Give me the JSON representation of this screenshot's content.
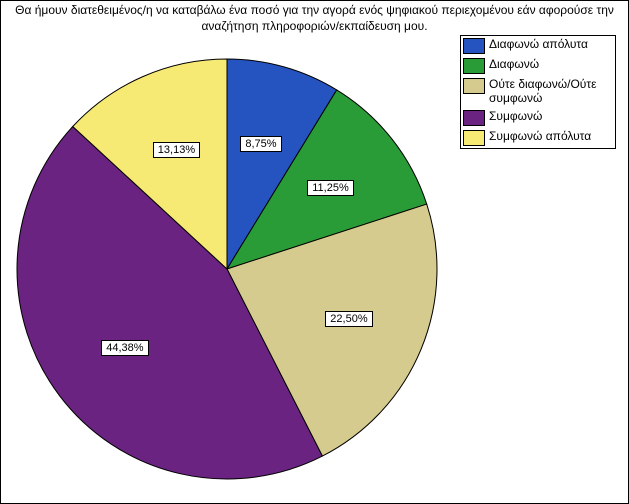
{
  "chart": {
    "type": "pie",
    "title": "Θα ήμουν διατεθειμένος/η να καταβάλω ένα ποσό για την αγορά ενός ψηφιακού περιεχομένου εάν αφορούσε την αναζήτηση πληροφοριών/εκπαίδευση μου.",
    "title_fontsize": 12,
    "background_color": "#ffffff",
    "border_color": "#000000",
    "slice_border_color": "#000000",
    "start_angle_deg": -90,
    "slices": [
      {
        "label": "Διαφωνώ απόλυτα",
        "value": 8.75,
        "display": "8,75%",
        "color": "#2554c1"
      },
      {
        "label": "Διαφωνώ",
        "value": 11.25,
        "display": "11,25%",
        "color": "#2a9c37"
      },
      {
        "label": "Ούτε διαφωνώ/Ούτε συμφωνώ",
        "value": 22.5,
        "display": "22,50%",
        "color": "#d5cb8e"
      },
      {
        "label": "Συμφωνώ",
        "value": 44.38,
        "display": "44,38%",
        "color": "#6a2380"
      },
      {
        "label": "Συμφωνώ απόλυτα",
        "value": 13.13,
        "display": "13,13%",
        "color": "#f7ea74"
      }
    ],
    "legend": {
      "position": "top-right",
      "fontsize": 12
    }
  }
}
